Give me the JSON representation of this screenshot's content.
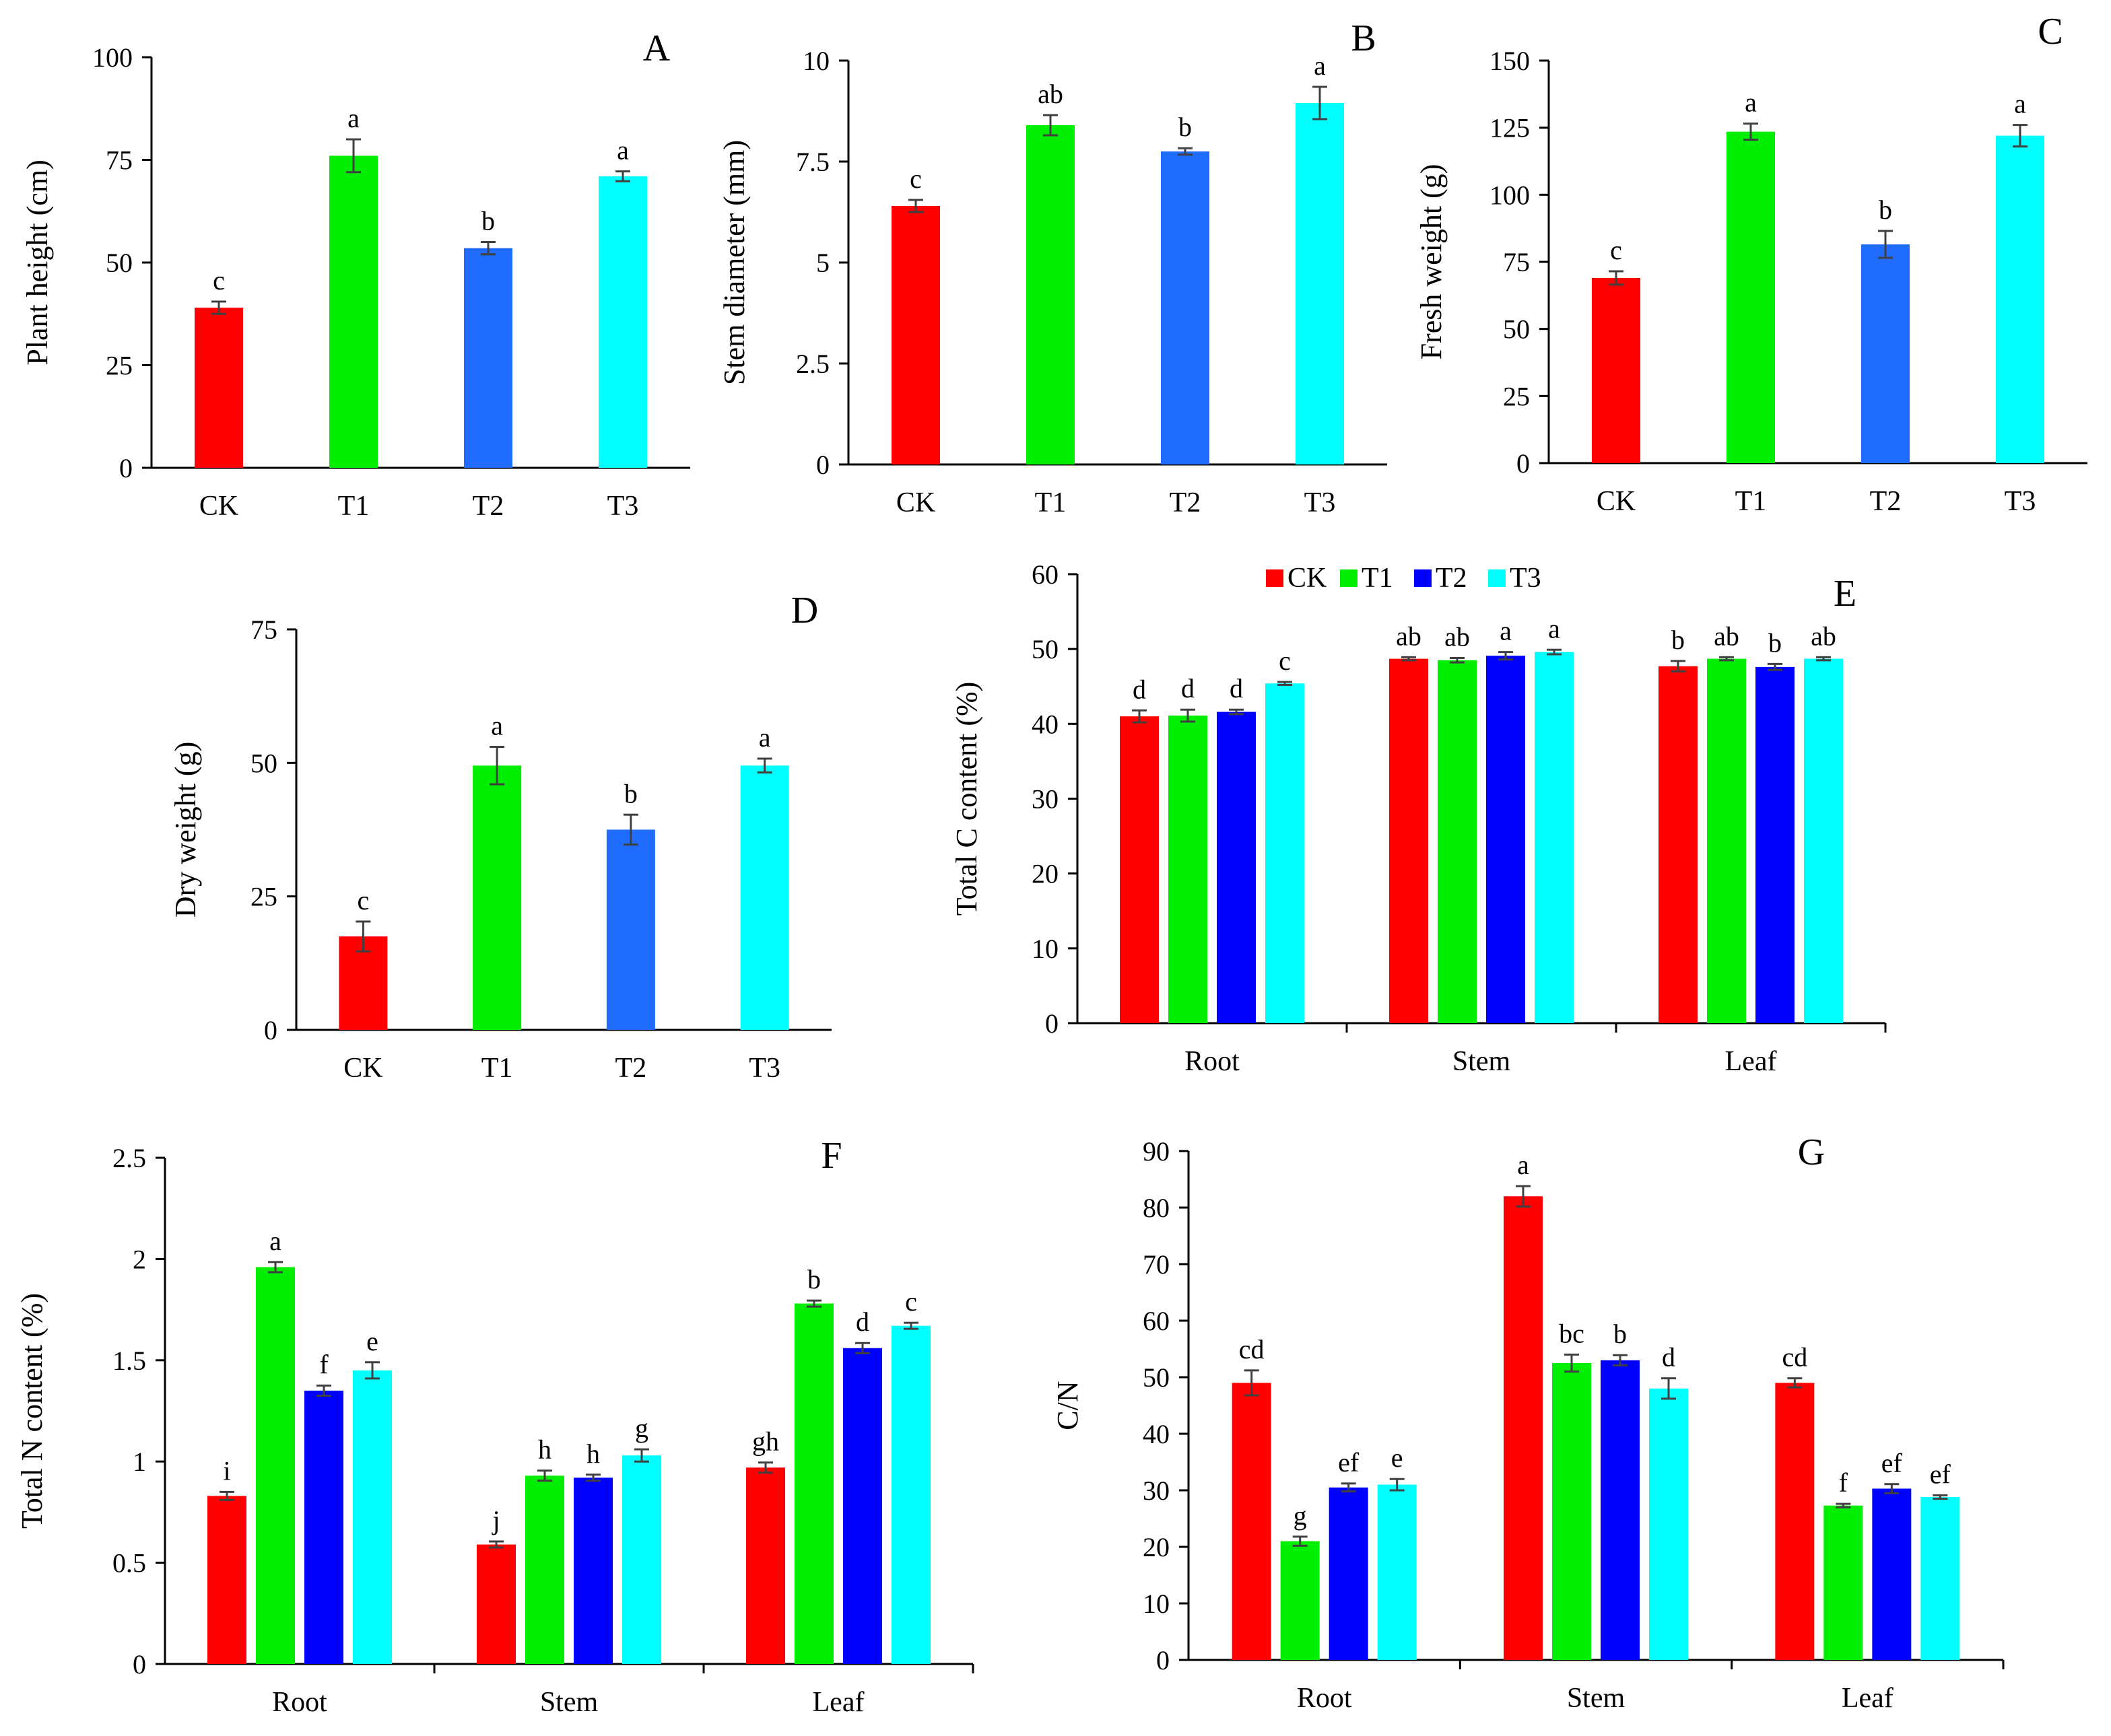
{
  "chart_data": [
    {
      "id": "A",
      "type": "bar",
      "panel_label": "A",
      "ylabel": "Plant height (cm)",
      "ylim": [
        0,
        100
      ],
      "yticks": [
        0,
        25,
        50,
        75,
        100
      ],
      "ytick_labels": [
        "0",
        "25",
        "50",
        "75",
        "100"
      ],
      "categories": [
        "CK",
        "T1",
        "T2",
        "T3"
      ],
      "values": [
        39,
        76,
        53.5,
        71
      ],
      "errors": [
        1.5,
        4,
        1.5,
        1.2
      ],
      "sig": [
        "c",
        "a",
        "b",
        "a"
      ],
      "colors": [
        "#ff0000",
        "#00ee00",
        "#1f6cff",
        "#00ffff"
      ]
    },
    {
      "id": "B",
      "type": "bar",
      "panel_label": "B",
      "ylabel": "Stem diameter (mm)",
      "ylim": [
        0,
        10
      ],
      "yticks": [
        0,
        2.5,
        5,
        7.5,
        10
      ],
      "ytick_labels": [
        "0",
        "2.5",
        "5",
        "7.5",
        "10"
      ],
      "categories": [
        "CK",
        "T1",
        "T2",
        "T3"
      ],
      "values": [
        6.4,
        8.4,
        7.75,
        8.95
      ],
      "errors": [
        0.15,
        0.25,
        0.08,
        0.4
      ],
      "sig": [
        "c",
        "ab",
        "b",
        "a"
      ],
      "colors": [
        "#ff0000",
        "#00ee00",
        "#1f6cff",
        "#00ffff"
      ]
    },
    {
      "id": "C",
      "type": "bar",
      "panel_label": "C",
      "ylabel": "Fresh weight (g)",
      "ylim": [
        0,
        150
      ],
      "yticks": [
        0,
        25,
        50,
        75,
        100,
        125,
        150
      ],
      "ytick_labels": [
        "0",
        "25",
        "50",
        "75",
        "100",
        "125",
        "150"
      ],
      "categories": [
        "CK",
        "T1",
        "T2",
        "T3"
      ],
      "values": [
        69,
        123.5,
        81.5,
        122
      ],
      "errors": [
        2.5,
        3,
        5,
        4
      ],
      "sig": [
        "c",
        "a",
        "b",
        "a"
      ],
      "colors": [
        "#ff0000",
        "#00ee00",
        "#1f6cff",
        "#00ffff"
      ]
    },
    {
      "id": "D",
      "type": "bar",
      "panel_label": "D",
      "ylabel": "Dry weight (g)",
      "ylim": [
        0,
        75
      ],
      "yticks": [
        0,
        25,
        50,
        75
      ],
      "ytick_labels": [
        "0",
        "25",
        "50",
        "75"
      ],
      "categories": [
        "CK",
        "T1",
        "T2",
        "T3"
      ],
      "values": [
        17.5,
        49.5,
        37.5,
        49.5
      ],
      "errors": [
        2.8,
        3.5,
        2.8,
        1.3
      ],
      "sig": [
        "c",
        "a",
        "b",
        "a"
      ],
      "colors": [
        "#ff0000",
        "#00ee00",
        "#1f6cff",
        "#00ffff"
      ]
    },
    {
      "id": "E",
      "type": "bar",
      "panel_label": "E",
      "ylabel": "Total C content (%)",
      "ylim": [
        0,
        60
      ],
      "yticks": [
        0,
        10,
        20,
        30,
        40,
        50,
        60
      ],
      "ytick_labels": [
        "0",
        "10",
        "20",
        "30",
        "40",
        "50",
        "60"
      ],
      "categories": [
        "Root",
        "Stem",
        "Leaf"
      ],
      "legend": [
        "CK",
        "T1",
        "T2",
        "T3"
      ],
      "series": [
        {
          "name": "CK",
          "color": "#ff0000",
          "values": [
            41,
            48.7,
            47.7
          ],
          "errors": [
            0.8,
            0.2,
            0.7
          ],
          "sig": [
            "d",
            "ab",
            "b"
          ]
        },
        {
          "name": "T1",
          "color": "#00ee00",
          "values": [
            41.1,
            48.5,
            48.7
          ],
          "errors": [
            0.8,
            0.3,
            0.2
          ],
          "sig": [
            "d",
            "ab",
            "ab"
          ]
        },
        {
          "name": "T2",
          "color": "#0000ff",
          "values": [
            41.6,
            49.1,
            47.6
          ],
          "errors": [
            0.3,
            0.5,
            0.4
          ],
          "sig": [
            "d",
            "a",
            "b"
          ]
        },
        {
          "name": "T3",
          "color": "#00ffff",
          "values": [
            45.4,
            49.6,
            48.7
          ],
          "errors": [
            0.2,
            0.3,
            0.2
          ],
          "sig": [
            "c",
            "a",
            "ab"
          ]
        }
      ]
    },
    {
      "id": "F",
      "type": "bar",
      "panel_label": "F",
      "ylabel": "Total N content (%)",
      "ylim": [
        0,
        2.5
      ],
      "yticks": [
        0,
        0.5,
        1,
        1.5,
        2,
        2.5
      ],
      "ytick_labels": [
        "0",
        "0.5",
        "1",
        "1.5",
        "2",
        "2.5"
      ],
      "categories": [
        "Root",
        "Stem",
        "Leaf"
      ],
      "series": [
        {
          "name": "CK",
          "color": "#ff0000",
          "values": [
            0.83,
            0.59,
            0.97
          ],
          "errors": [
            0.02,
            0.015,
            0.025
          ],
          "sig": [
            "i",
            "j",
            "gh"
          ]
        },
        {
          "name": "T1",
          "color": "#00ee00",
          "values": [
            1.96,
            0.93,
            1.78
          ],
          "errors": [
            0.025,
            0.025,
            0.015
          ],
          "sig": [
            "a",
            "h",
            "b"
          ]
        },
        {
          "name": "T2",
          "color": "#0000ff",
          "values": [
            1.35,
            0.92,
            1.56
          ],
          "errors": [
            0.025,
            0.015,
            0.025
          ],
          "sig": [
            "f",
            "h",
            "d"
          ]
        },
        {
          "name": "T3",
          "color": "#00ffff",
          "values": [
            1.45,
            1.03,
            1.67
          ],
          "errors": [
            0.04,
            0.03,
            0.015
          ],
          "sig": [
            "e",
            "g",
            "c"
          ]
        }
      ]
    },
    {
      "id": "G",
      "type": "bar",
      "panel_label": "G",
      "ylabel": "C/N",
      "ylim": [
        0,
        90
      ],
      "yticks": [
        0,
        10,
        20,
        30,
        40,
        50,
        60,
        70,
        80,
        90
      ],
      "ytick_labels": [
        "0",
        "10",
        "20",
        "30",
        "40",
        "50",
        "60",
        "70",
        "80",
        "90"
      ],
      "categories": [
        "Root",
        "Stem",
        "Leaf"
      ],
      "series": [
        {
          "name": "CK",
          "color": "#ff0000",
          "values": [
            49,
            82,
            49
          ],
          "errors": [
            2.2,
            1.8,
            0.8
          ],
          "sig": [
            "cd",
            "a",
            "cd"
          ]
        },
        {
          "name": "T1",
          "color": "#00ee00",
          "values": [
            21,
            52.5,
            27.3
          ],
          "errors": [
            0.8,
            1.5,
            0.3
          ],
          "sig": [
            "g",
            "bc",
            "f"
          ]
        },
        {
          "name": "T2",
          "color": "#0000ff",
          "values": [
            30.5,
            53,
            30.3
          ],
          "errors": [
            0.7,
            0.9,
            0.8
          ],
          "sig": [
            "ef",
            "b",
            "ef"
          ]
        },
        {
          "name": "T3",
          "color": "#00ffff",
          "values": [
            31,
            48,
            28.8
          ],
          "errors": [
            1,
            1.8,
            0.3
          ],
          "sig": [
            "e",
            "d",
            "ef"
          ]
        }
      ]
    }
  ]
}
